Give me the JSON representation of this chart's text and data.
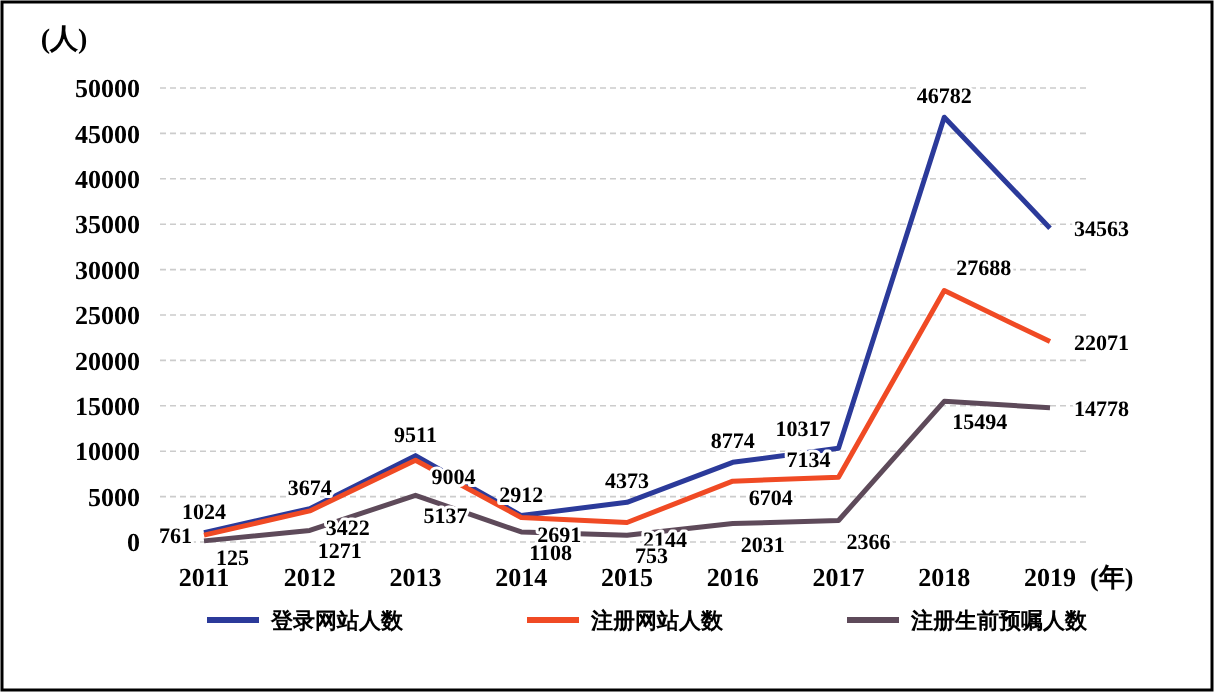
{
  "chart_data": {
    "type": "line",
    "ylabel": "(人)",
    "xlabel": "(年)",
    "categories": [
      "2011",
      "2012",
      "2013",
      "2014",
      "2015",
      "2016",
      "2017",
      "2018",
      "2019"
    ],
    "series": [
      {
        "name": "登录网站人数",
        "color": "#2b3a9a",
        "values": [
          1024,
          3674,
          9511,
          2912,
          4373,
          8774,
          10317,
          46782,
          34563
        ]
      },
      {
        "name": "注册网站人数",
        "color": "#f04a24",
        "values": [
          761,
          3422,
          9004,
          2691,
          2144,
          6704,
          7134,
          27688,
          22071
        ]
      },
      {
        "name": "注册生前预嘱人数",
        "color": "#5e4a5a",
        "values": [
          125,
          1271,
          5137,
          1108,
          753,
          2031,
          2366,
          15494,
          14778
        ]
      }
    ],
    "ylim": [
      0,
      50000
    ],
    "yticks": [
      0,
      5000,
      10000,
      15000,
      20000,
      25000,
      30000,
      35000,
      40000,
      45000,
      50000
    ],
    "grid": "y",
    "data_labels": true,
    "legend": "bottom",
    "marker": "none",
    "line_style": "solid"
  }
}
